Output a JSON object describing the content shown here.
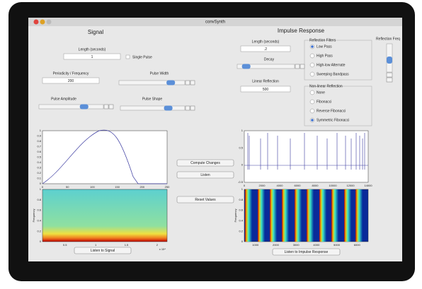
{
  "window": {
    "title": "convSynth"
  },
  "signal": {
    "heading": "Signal",
    "length_label": "Length (seconds)",
    "length_value": "1",
    "single_pulse": "Single Pulse",
    "periodicity_label": "Periodicity / Frequency",
    "periodicity_value": "200",
    "pulse_width": "Pulse Width",
    "pulse_amplitude": "Pulse Amplitude",
    "pulse_shape": "Pulse Shape",
    "listen_button": "Listen to Signal"
  },
  "impulse": {
    "heading": "Impulse Response",
    "length_label": "Length (seconds)",
    "length_value": ".2",
    "decay": "Decay",
    "linear_reflection_label": "Linear Reflection",
    "linear_reflection_value": "500",
    "listen_button": "Listen to Impulse Response"
  },
  "reflection_filters": {
    "title": "Reflection Filters",
    "options": [
      "Low Pass",
      "High Pass",
      "High-low Alternate",
      "Sweeping Bandpass"
    ],
    "selected": 0
  },
  "reflection_freq": "Reflection Freq",
  "nonlinear_reflection": {
    "title": "Non-linear Reflection",
    "options": [
      "None",
      "Fibonacci",
      "Reverse Fibonacci",
      "Symmetric Fibonacci"
    ],
    "selected": 3
  },
  "buttons": {
    "compute": "Compute Changes",
    "listen": "Listen",
    "reset": "Reset Values"
  },
  "plots": {
    "pulse": {
      "yticks": [
        "0",
        "0.1",
        "0.2",
        "0.3",
        "0.4",
        "0.5",
        "0.6",
        "0.7",
        "0.8",
        "0.9",
        "1"
      ],
      "xticks": [
        "0",
        "50",
        "100",
        "150",
        "200",
        "250"
      ]
    },
    "signal_spectrogram": {
      "ylabel": "Frequency",
      "yticks": [
        "0",
        "0.2",
        "0.4",
        "0.6",
        "0.8",
        "1"
      ],
      "xticks": [
        "0.5",
        "1",
        "1.5",
        "2"
      ],
      "exponent": "x 10⁴"
    },
    "impulse": {
      "yticks": [
        "-0.5",
        "0",
        "0.5",
        "1"
      ],
      "xticks": [
        "0",
        "2000",
        "4000",
        "6000",
        "8000",
        "10000",
        "12000",
        "14000"
      ]
    },
    "impulse_spectrogram": {
      "ylabel": "Frequency",
      "yticks": [
        "0",
        "0.2",
        "0.4",
        "0.6",
        "0.8",
        "1"
      ],
      "xticks": [
        "1000",
        "2000",
        "3000",
        "4000",
        "5000",
        "6000"
      ]
    }
  }
}
